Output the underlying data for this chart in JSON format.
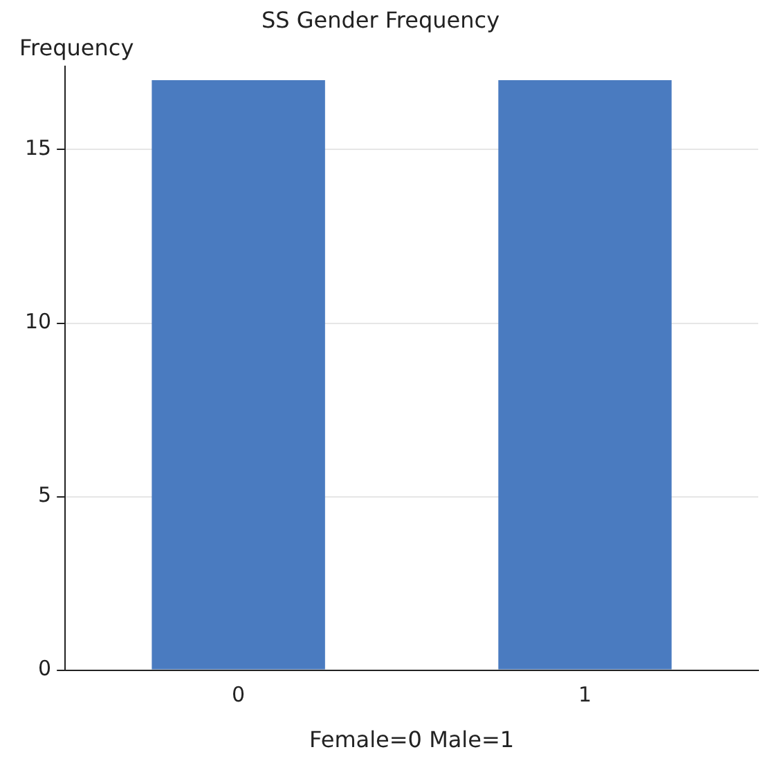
{
  "chart_data": {
    "type": "bar",
    "title": "SS Gender Frequency",
    "xlabel": "Female=0 Male=1",
    "ylabel": "Frequency",
    "categories": [
      "0",
      "1"
    ],
    "values": [
      17,
      17
    ],
    "color": "#4a7bc0",
    "ylim": [
      0,
      17.4
    ],
    "yticks": [
      0,
      5,
      10,
      15
    ],
    "grid": "y",
    "legend": false
  }
}
